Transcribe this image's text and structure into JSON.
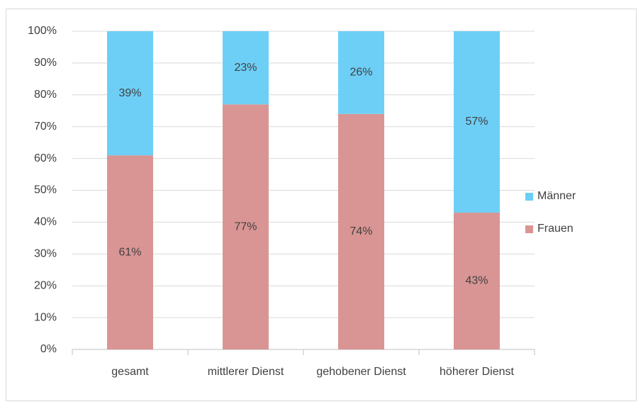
{
  "chart_data": {
    "type": "stacked_bar",
    "categories": [
      "gesamt",
      "mittlerer Dienst",
      "gehobener Dienst",
      "höherer Dienst"
    ],
    "series": [
      {
        "name": "Frauen",
        "color": "#d99594",
        "values": [
          61,
          77,
          74,
          43
        ],
        "value_labels": [
          "61%",
          "77%",
          "74%",
          "43%"
        ]
      },
      {
        "name": "Männer",
        "color": "#6dcff6",
        "values": [
          39,
          23,
          26,
          57
        ],
        "value_labels": [
          "39%",
          "23%",
          "26%",
          "57%"
        ]
      }
    ],
    "ylim": [
      0,
      100
    ],
    "yticks": [
      {
        "value": 0,
        "label": "0%"
      },
      {
        "value": 10,
        "label": "10%"
      },
      {
        "value": 20,
        "label": "20%"
      },
      {
        "value": 30,
        "label": "30%"
      },
      {
        "value": 40,
        "label": "40%"
      },
      {
        "value": 50,
        "label": "50%"
      },
      {
        "value": 60,
        "label": "60%"
      },
      {
        "value": 70,
        "label": "70%"
      },
      {
        "value": 80,
        "label": "80%"
      },
      {
        "value": 90,
        "label": "90%"
      },
      {
        "value": 100,
        "label": "100%"
      }
    ],
    "grid": true,
    "legend": "right"
  }
}
